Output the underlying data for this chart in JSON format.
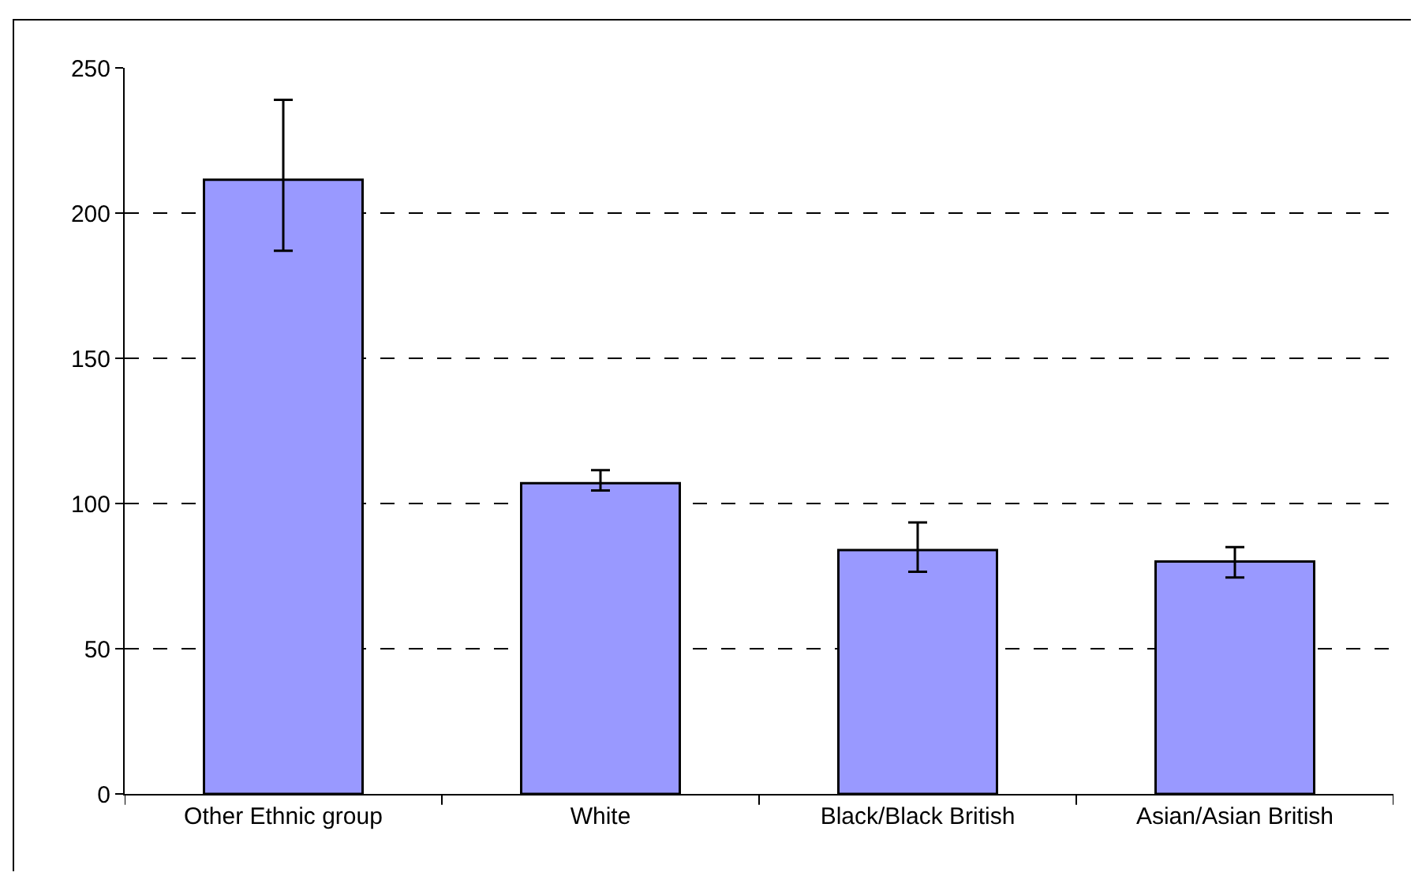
{
  "chart_data": {
    "type": "bar",
    "categories": [
      "Other Ethnic group",
      "White",
      "Black/Black British",
      "Asian/Asian British"
    ],
    "values": [
      211.5,
      107,
      84,
      80
    ],
    "color": "#9999ff",
    "errors": [
      [
        187,
        239
      ],
      [
        104.5,
        111.5
      ],
      [
        76.5,
        93.5
      ],
      [
        74.5,
        85
      ]
    ],
    "ylim": [
      0,
      250
    ],
    "yticks": [
      0,
      50,
      100,
      150,
      200,
      250
    ],
    "grid": "y"
  }
}
